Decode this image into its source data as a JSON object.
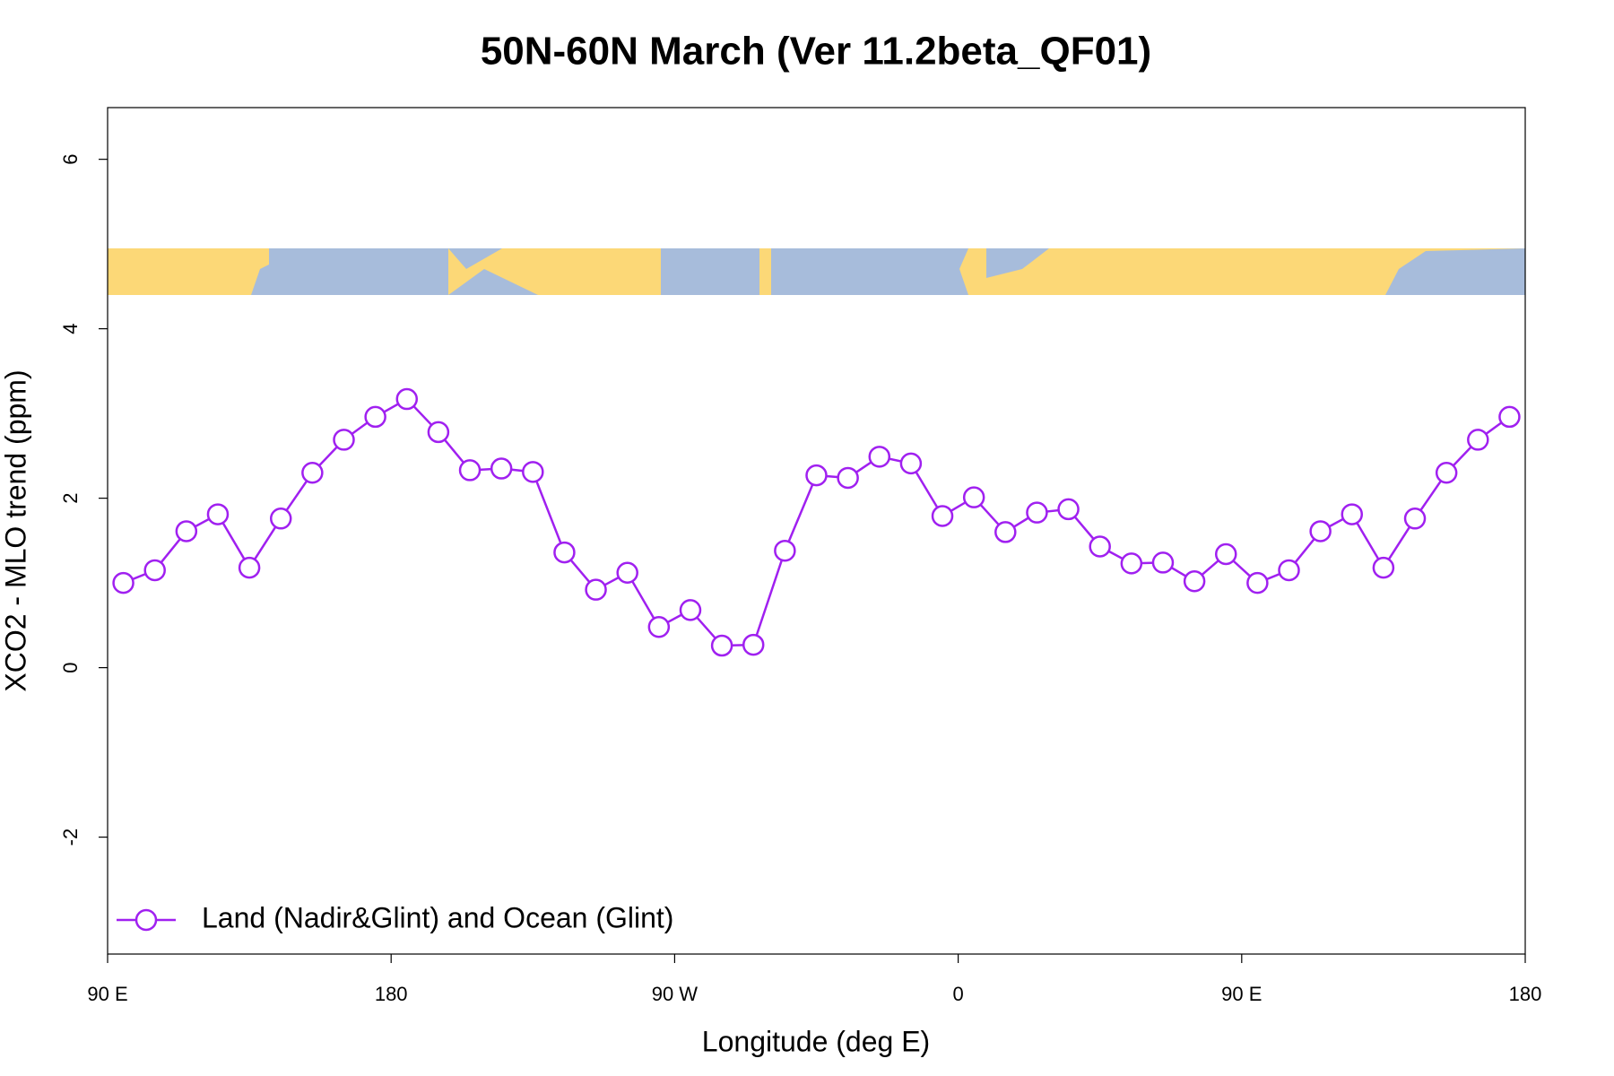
{
  "chart_data": {
    "type": "line",
    "title": "50N-60N March (Ver 11.2beta_QF01)",
    "xlabel": "Longitude (deg E)",
    "ylabel": "XCO2 - MLO trend (ppm)",
    "x": [
      95,
      105,
      115,
      125,
      135,
      145,
      155,
      165,
      175,
      185,
      195,
      205,
      215,
      225,
      235,
      245,
      255,
      265,
      275,
      285,
      295,
      305,
      315,
      325,
      335,
      345,
      355,
      365,
      375,
      385,
      395,
      405,
      415,
      425,
      435,
      445,
      455,
      465,
      475,
      485,
      495,
      505,
      515,
      525,
      535
    ],
    "series": [
      {
        "name": "Land (Nadir&Glint) and Ocean (Glint)",
        "color": "#a020f0",
        "values": [
          1.0,
          1.15,
          1.61,
          1.81,
          1.18,
          1.76,
          2.3,
          2.69,
          2.96,
          3.17,
          2.78,
          2.33,
          2.35,
          2.31,
          1.36,
          0.92,
          1.12,
          0.48,
          0.68,
          0.26,
          0.27,
          1.38,
          2.27,
          2.24,
          2.49,
          2.41,
          1.79,
          2.01,
          1.6,
          1.83,
          1.87,
          1.43,
          1.23,
          1.24,
          1.02,
          1.34,
          1.0,
          1.15,
          1.61,
          1.81,
          1.18,
          1.76,
          2.3,
          2.69,
          2.96
        ]
      }
    ],
    "marker": "circle",
    "xlim": [
      90,
      540
    ],
    "ylim": [
      -3.38,
      6.61
    ],
    "xticks": [
      {
        "value": 90,
        "label": "90 E"
      },
      {
        "value": 180,
        "label": "180"
      },
      {
        "value": 270,
        "label": "90 W"
      },
      {
        "value": 360,
        "label": "0"
      },
      {
        "value": 450,
        "label": "90 E"
      },
      {
        "value": 540,
        "label": "180"
      }
    ],
    "yticks": [
      -2,
      0,
      2,
      4,
      6
    ],
    "legend": "lower left"
  }
}
